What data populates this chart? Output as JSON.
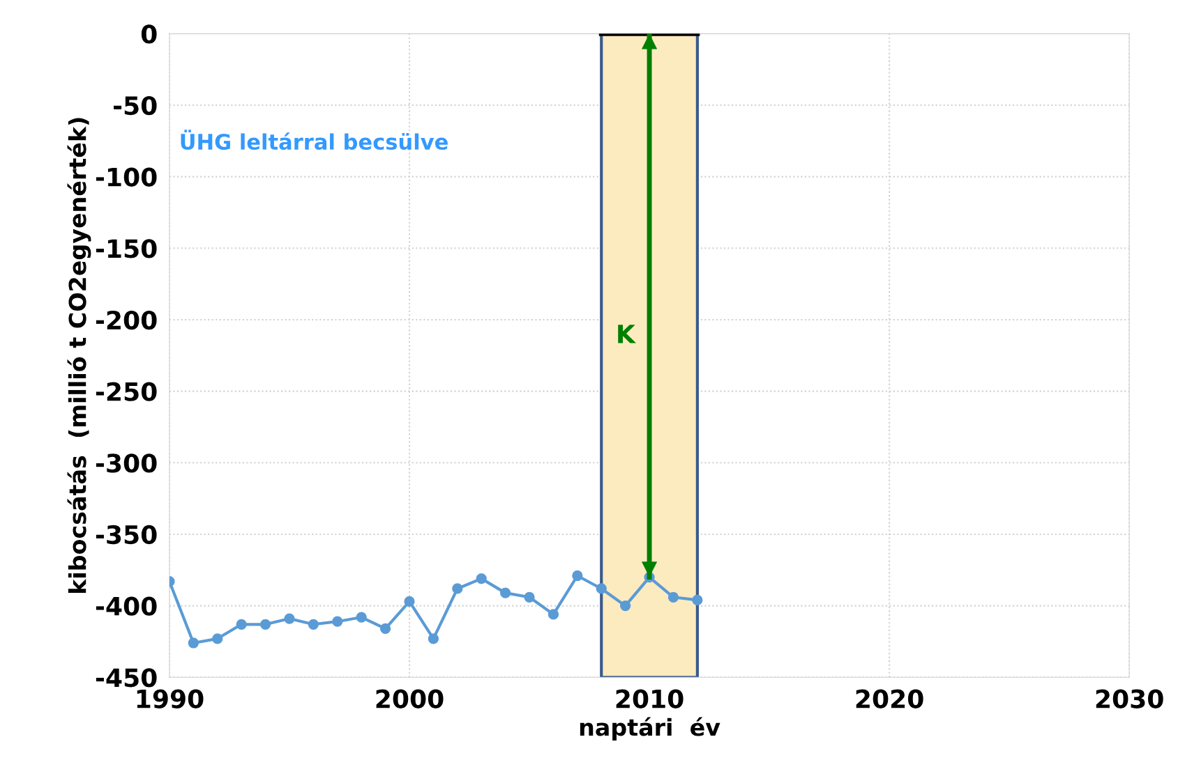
{
  "chart_data": {
    "type": "line",
    "xlabel": "naptári  év",
    "ylabel": "kibocsátás  (millió t CO2egyenérték)",
    "series": [
      {
        "name": "ÜHG leltárral becsülve",
        "color": "#5b9bd5",
        "marker": "circle",
        "x": [
          1990,
          1991,
          1992,
          1993,
          1994,
          1995,
          1996,
          1997,
          1998,
          1999,
          2000,
          2001,
          2002,
          2003,
          2004,
          2005,
          2006,
          2007,
          2008,
          2009,
          2010,
          2011,
          2012
        ],
        "values": [
          -383,
          -426,
          -423,
          -413,
          -413,
          -409,
          -413,
          -411,
          -408,
          -416,
          -397,
          -423,
          -388,
          -381,
          -391,
          -394,
          -406,
          -379,
          -388,
          -400,
          -380,
          -394,
          -396
        ]
      },
      {
        "color": "#000000",
        "marker": "none",
        "x": [
          2008,
          2012
        ],
        "values": [
          0,
          0
        ]
      },
      {
        "color": "#008000",
        "marker": "none",
        "x": [
          2010,
          2010
        ],
        "values": [
          0,
          -380
        ]
      }
    ],
    "bands": [
      {
        "axis": "x",
        "from": 2008,
        "to": 2012,
        "color": "#fdebc0"
      }
    ],
    "annotations": [
      "K"
    ],
    "xlim": [
      1990,
      2030
    ],
    "xticks": [
      1990,
      2000,
      2010,
      2020,
      2030
    ],
    "ylim": [
      -450,
      0
    ],
    "yticks": [
      -450,
      -400,
      -350,
      -300,
      -250,
      -200,
      -150,
      -100,
      -50,
      0
    ],
    "grid": true,
    "legend": false
  }
}
